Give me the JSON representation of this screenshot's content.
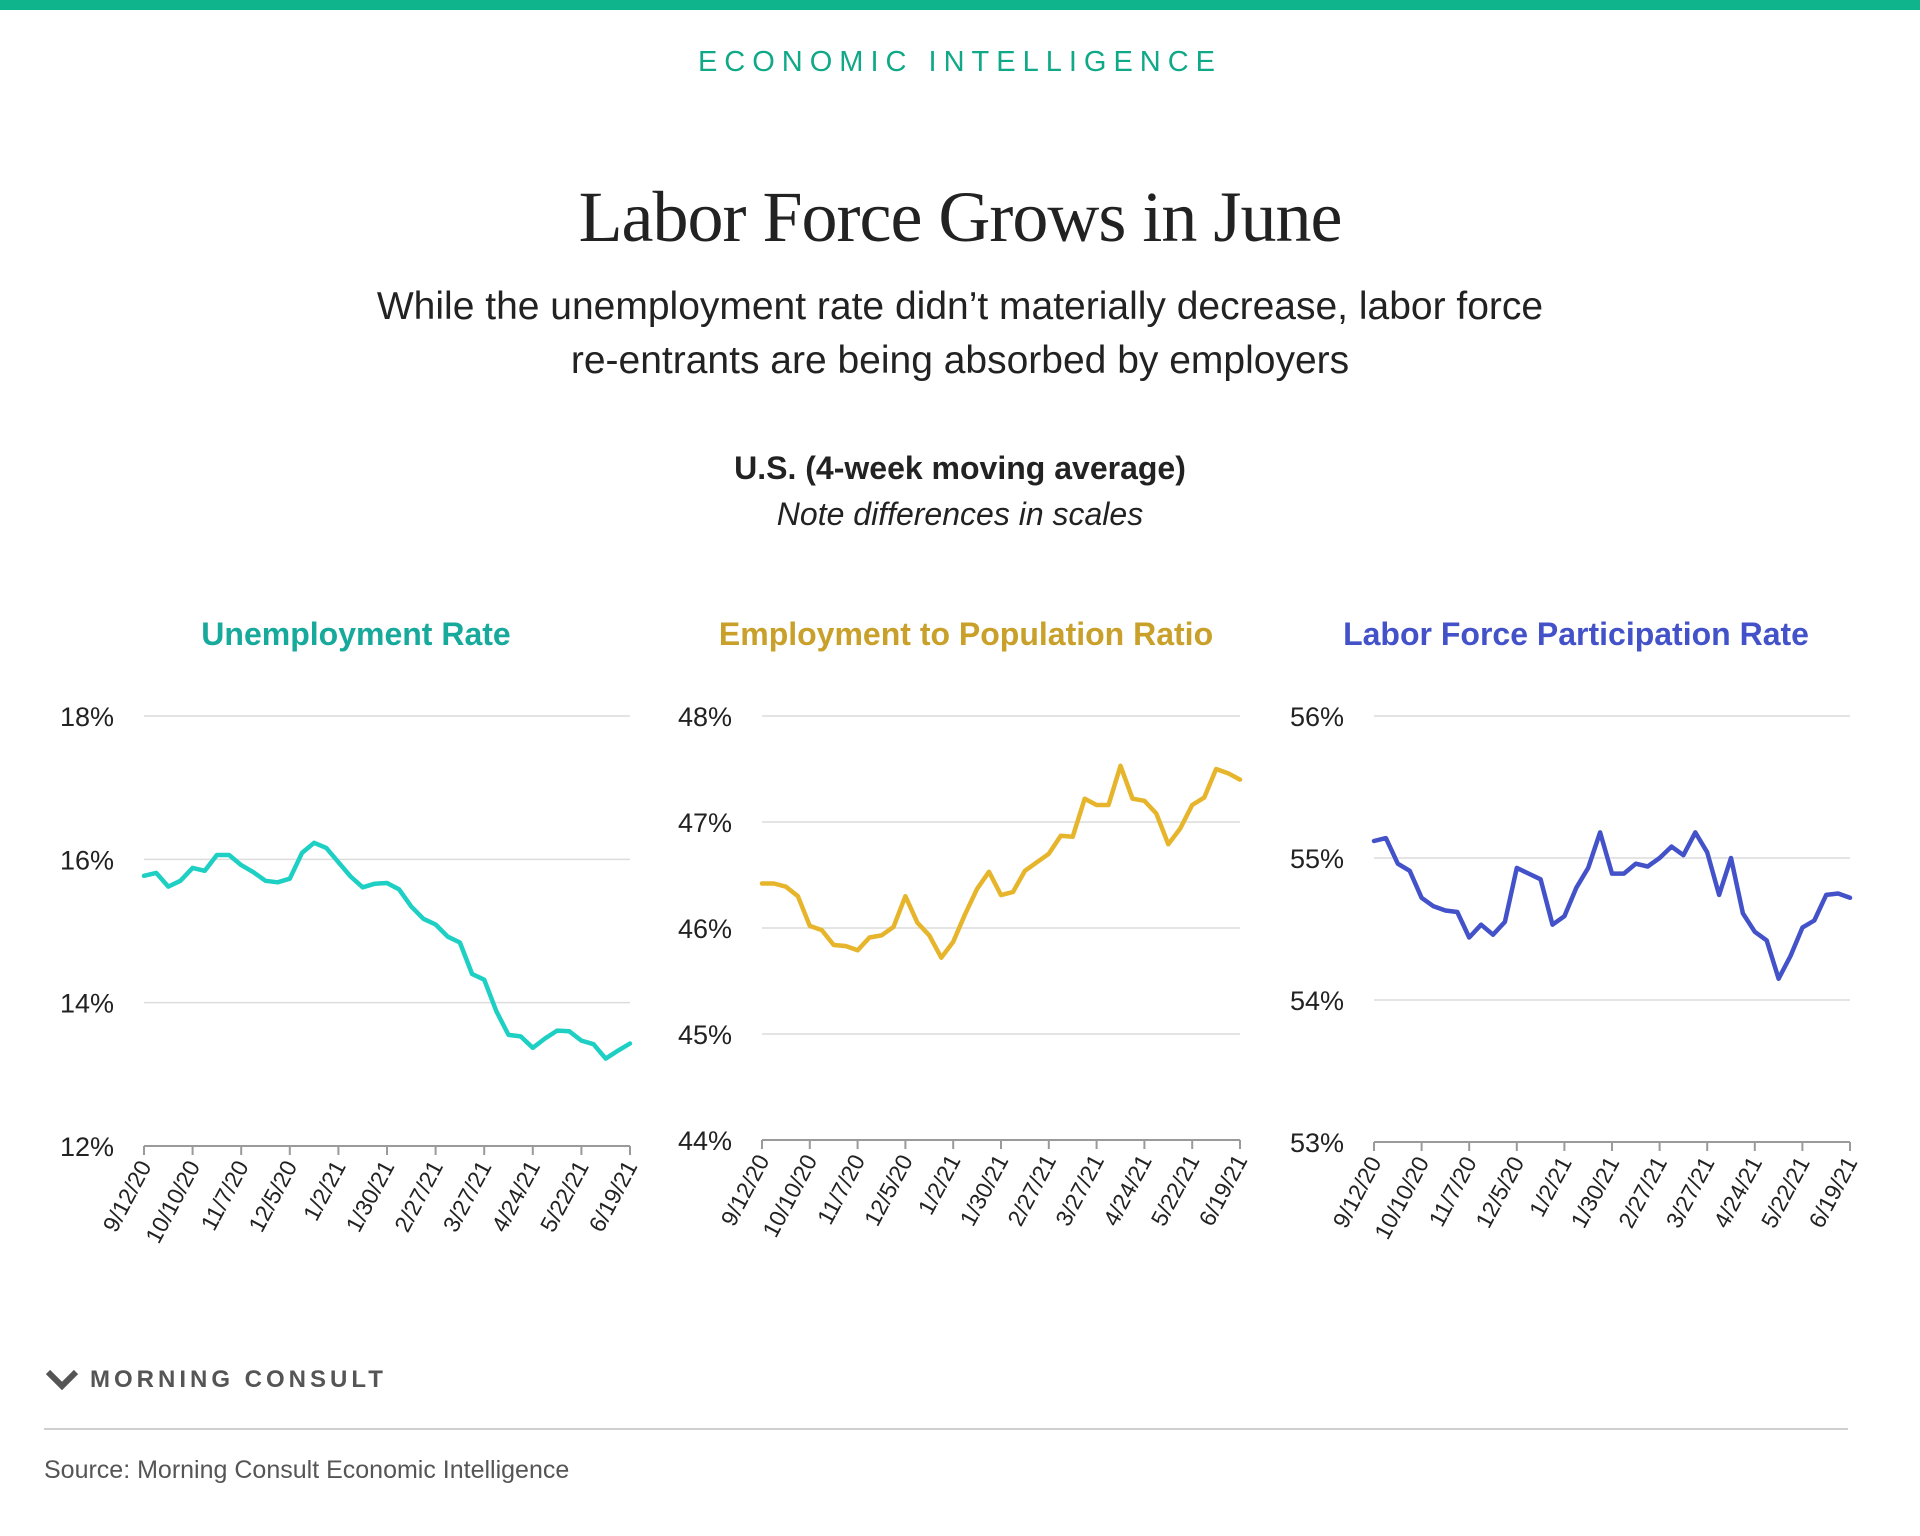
{
  "header": {
    "eyebrow": "ECONOMIC INTELLIGENCE",
    "title": "Labor Force Grows in June",
    "subtitle_line1": "While the unemployment rate didn’t materially decrease, labor force",
    "subtitle_line2": "re-entrants are being absorbed by employers"
  },
  "chart_heading": "U.S. (4-week moving average)",
  "chart_note": "Note differences in scales",
  "footer": {
    "brand": "MORNING CONSULT",
    "source": "Source: Morning Consult Economic Intelligence"
  },
  "colors": {
    "accent": "#10b48c",
    "unemployment": "#1ecfc4",
    "employment_pop": "#e6b52c",
    "participation": "#4352c9",
    "grid": "#dcdcdc"
  },
  "chart_data": [
    {
      "type": "line",
      "title": "Unemployment Rate",
      "color": "#1ecfc4",
      "title_color": "#17a99c",
      "ylim": [
        12,
        18
      ],
      "yticks": [
        "12%",
        "14%",
        "16%",
        "18%"
      ],
      "yticks_values": [
        12,
        14,
        16,
        18
      ],
      "xticks": [
        "9/12/20",
        "10/10/20",
        "11/7/20",
        "12/5/20",
        "1/2/21",
        "1/30/21",
        "2/27/21",
        "3/27/21",
        "4/24/21",
        "5/22/21",
        "6/19/21"
      ],
      "grid": true,
      "values": [
        15.77,
        15.81,
        15.62,
        15.7,
        15.88,
        15.84,
        16.06,
        16.06,
        15.92,
        15.82,
        15.7,
        15.68,
        15.73,
        16.09,
        16.23,
        16.16,
        15.96,
        15.76,
        15.61,
        15.66,
        15.67,
        15.58,
        15.34,
        15.17,
        15.09,
        14.92,
        14.84,
        14.4,
        14.32,
        13.88,
        13.55,
        13.53,
        13.37,
        13.5,
        13.61,
        13.6,
        13.47,
        13.42,
        13.22,
        13.33,
        13.43
      ]
    },
    {
      "type": "line",
      "title": "Employment to Population Ratio",
      "color": "#e6b52c",
      "title_color": "#c8a02a",
      "ylim": [
        44,
        48
      ],
      "yticks": [
        "44%",
        "45%",
        "46%",
        "47%",
        "48%"
      ],
      "yticks_values": [
        44,
        45,
        46,
        47,
        48
      ],
      "xticks": [
        "9/12/20",
        "10/10/20",
        "11/7/20",
        "12/5/20",
        "1/2/21",
        "1/30/21",
        "2/27/21",
        "3/27/21",
        "4/24/21",
        "5/22/21",
        "6/19/21"
      ],
      "grid": true,
      "values": [
        46.42,
        46.42,
        46.39,
        46.3,
        46.02,
        45.98,
        45.84,
        45.83,
        45.79,
        45.91,
        45.93,
        46.01,
        46.3,
        46.05,
        45.93,
        45.72,
        45.87,
        46.13,
        46.37,
        46.53,
        46.31,
        46.34,
        46.54,
        46.62,
        46.7,
        46.87,
        46.86,
        47.22,
        47.16,
        47.16,
        47.53,
        47.22,
        47.2,
        47.08,
        46.79,
        46.94,
        47.16,
        47.23,
        47.5,
        47.46,
        47.4
      ]
    },
    {
      "type": "line",
      "title": "Labor Force Participation Rate",
      "color": "#4352c9",
      "title_color": "#4352c9",
      "ylim": [
        53,
        56
      ],
      "yticks": [
        "53%",
        "54%",
        "55%",
        "56%"
      ],
      "yticks_values": [
        53,
        54,
        55,
        56
      ],
      "xticks": [
        "9/12/20",
        "10/10/20",
        "11/7/20",
        "12/5/20",
        "1/2/21",
        "1/30/21",
        "2/27/21",
        "3/27/21",
        "4/24/21",
        "5/22/21",
        "6/19/21"
      ],
      "grid": true,
      "values": [
        55.12,
        55.14,
        54.96,
        54.91,
        54.72,
        54.66,
        54.63,
        54.62,
        54.44,
        54.53,
        54.46,
        54.55,
        54.93,
        54.89,
        54.85,
        54.53,
        54.59,
        54.79,
        54.93,
        55.18,
        54.89,
        54.89,
        54.96,
        54.94,
        55.0,
        55.08,
        55.02,
        55.18,
        55.04,
        54.74,
        55.0,
        54.61,
        54.48,
        54.42,
        54.15,
        54.31,
        54.51,
        54.56,
        54.74,
        54.75,
        54.72
      ]
    }
  ]
}
